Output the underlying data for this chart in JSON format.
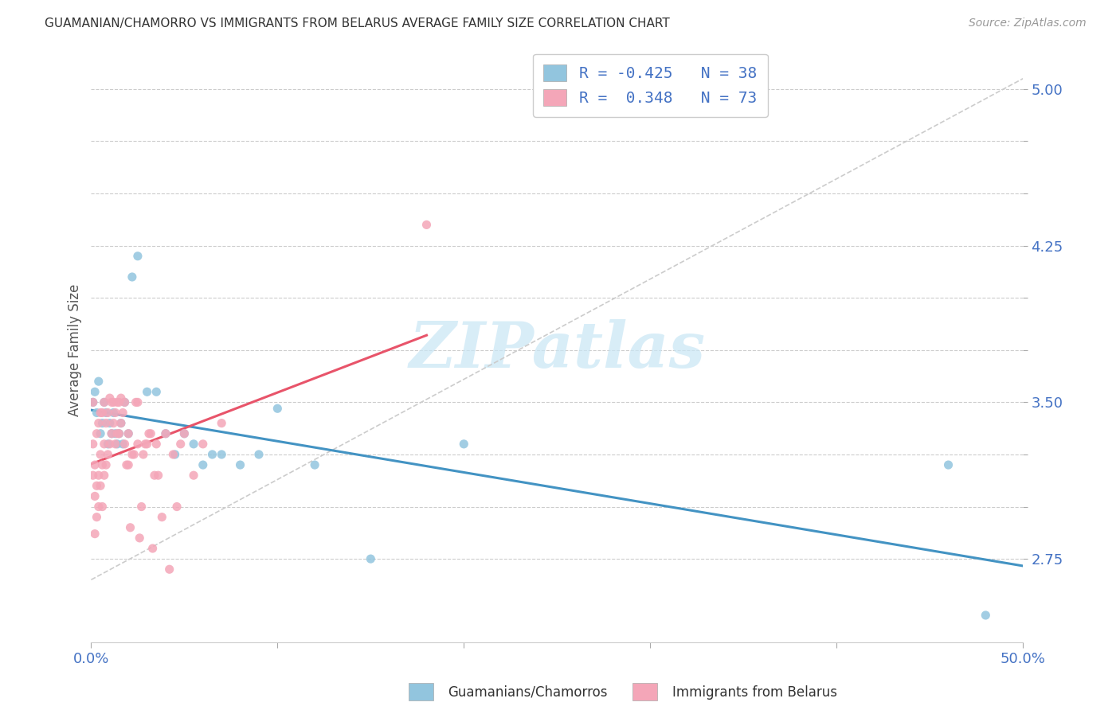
{
  "title": "GUAMANIAN/CHAMORRO VS IMMIGRANTS FROM BELARUS AVERAGE FAMILY SIZE CORRELATION CHART",
  "source": "Source: ZipAtlas.com",
  "ylabel": "Average Family Size",
  "legend_label_blue": "Guamanians/Chamorros",
  "legend_label_pink": "Immigrants from Belarus",
  "blue_R": -0.425,
  "blue_N": 38,
  "pink_R": 0.348,
  "pink_N": 73,
  "blue_color": "#92c5de",
  "pink_color": "#f4a6b8",
  "blue_line_color": "#4393c3",
  "pink_line_color": "#e8546a",
  "diag_color": "#cccccc",
  "watermark_color": "#c8e6f5",
  "xlim": [
    0.0,
    0.5
  ],
  "ylim": [
    2.35,
    5.15
  ],
  "blue_points_x": [
    0.001,
    0.002,
    0.003,
    0.004,
    0.005,
    0.006,
    0.007,
    0.008,
    0.009,
    0.01,
    0.011,
    0.012,
    0.013,
    0.014,
    0.015,
    0.016,
    0.017,
    0.018,
    0.02,
    0.022,
    0.025,
    0.03,
    0.035,
    0.04,
    0.045,
    0.05,
    0.055,
    0.06,
    0.065,
    0.07,
    0.08,
    0.09,
    0.1,
    0.12,
    0.15,
    0.2,
    0.46,
    0.48
  ],
  "blue_points_y": [
    3.5,
    3.55,
    3.45,
    3.6,
    3.35,
    3.4,
    3.5,
    3.45,
    3.3,
    3.4,
    3.35,
    3.45,
    3.35,
    3.3,
    3.35,
    3.4,
    3.3,
    3.5,
    3.35,
    4.1,
    4.2,
    3.55,
    3.55,
    3.35,
    3.25,
    3.35,
    3.3,
    3.2,
    3.25,
    3.25,
    3.2,
    3.25,
    3.47,
    3.2,
    2.75,
    3.3,
    3.2,
    2.48
  ],
  "pink_points_x": [
    0.001,
    0.001,
    0.001,
    0.002,
    0.002,
    0.002,
    0.003,
    0.003,
    0.003,
    0.004,
    0.004,
    0.004,
    0.005,
    0.005,
    0.005,
    0.006,
    0.006,
    0.006,
    0.007,
    0.007,
    0.007,
    0.008,
    0.008,
    0.009,
    0.009,
    0.01,
    0.01,
    0.011,
    0.011,
    0.012,
    0.012,
    0.013,
    0.013,
    0.014,
    0.014,
    0.015,
    0.015,
    0.016,
    0.016,
    0.017,
    0.018,
    0.018,
    0.019,
    0.02,
    0.02,
    0.021,
    0.022,
    0.023,
    0.024,
    0.025,
    0.025,
    0.026,
    0.027,
    0.028,
    0.029,
    0.03,
    0.031,
    0.032,
    0.033,
    0.034,
    0.035,
    0.036,
    0.038,
    0.04,
    0.042,
    0.044,
    0.046,
    0.048,
    0.05,
    0.055,
    0.06,
    0.07,
    0.18
  ],
  "pink_points_y": [
    3.15,
    3.3,
    3.5,
    2.87,
    3.05,
    3.2,
    2.95,
    3.1,
    3.35,
    3.0,
    3.15,
    3.4,
    3.1,
    3.25,
    3.45,
    3.0,
    3.2,
    3.45,
    3.15,
    3.3,
    3.5,
    3.2,
    3.4,
    3.25,
    3.45,
    3.3,
    3.52,
    3.35,
    3.5,
    3.4,
    3.5,
    3.3,
    3.45,
    3.35,
    3.5,
    3.35,
    3.5,
    3.4,
    3.52,
    3.45,
    3.3,
    3.5,
    3.2,
    3.2,
    3.35,
    2.9,
    3.25,
    3.25,
    3.5,
    3.3,
    3.5,
    2.85,
    3.0,
    3.25,
    3.3,
    3.3,
    3.35,
    3.35,
    2.8,
    3.15,
    3.3,
    3.15,
    2.95,
    3.35,
    2.7,
    3.25,
    3.0,
    3.3,
    3.35,
    3.15,
    3.3,
    3.4,
    4.35
  ]
}
